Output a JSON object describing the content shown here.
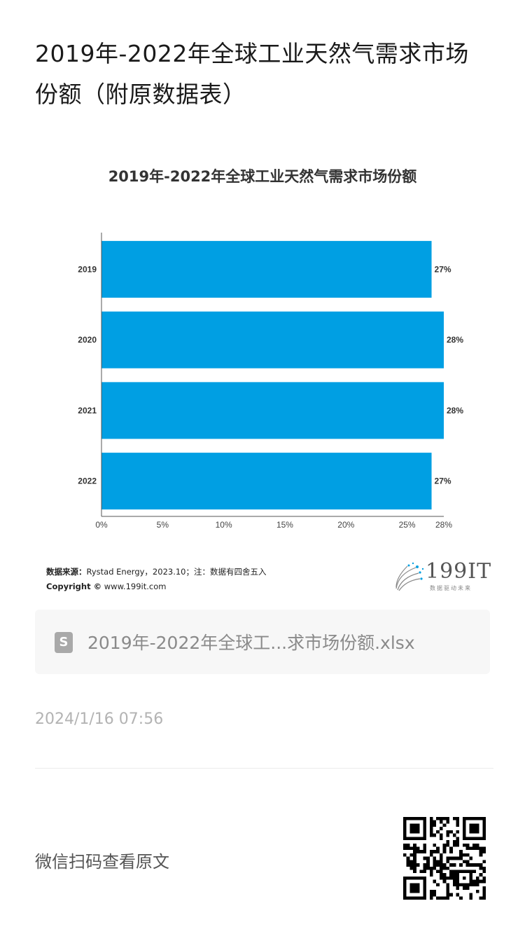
{
  "page": {
    "title": "2019年-2022年全球工业天然气需求市场份额（附原数据表）"
  },
  "chart_data": {
    "type": "bar",
    "orientation": "horizontal",
    "title": "2019年-2022年全球工业天然气需求市场份额",
    "categories": [
      "2019",
      "2020",
      "2021",
      "2022"
    ],
    "values": [
      27,
      28,
      28,
      27
    ],
    "value_labels": [
      "27%",
      "28%",
      "28%",
      "27%"
    ],
    "xticks": [
      "0%",
      "5%",
      "10%",
      "15%",
      "20%",
      "25%",
      "28%"
    ],
    "xtick_values": [
      0,
      5,
      10,
      15,
      20,
      25,
      28
    ],
    "xlim": [
      0,
      28
    ],
    "xlabel": "",
    "ylabel": "",
    "bar_color": "#009fe3",
    "grid": false
  },
  "source": {
    "label": "数据来源：",
    "text": "Rystad Energy，2023.10；注：数据有四舍五入",
    "copyright_label": "Copyright ©",
    "copyright_text": " www.199it.com"
  },
  "logo": {
    "text": "199IT",
    "subtext": "数据驱动未来"
  },
  "file": {
    "icon": "S",
    "name": "2019年-2022年全球工...求市场份额.xlsx"
  },
  "timestamp": "2024/1/16 07:56",
  "wechat_label": "微信扫码查看原文"
}
